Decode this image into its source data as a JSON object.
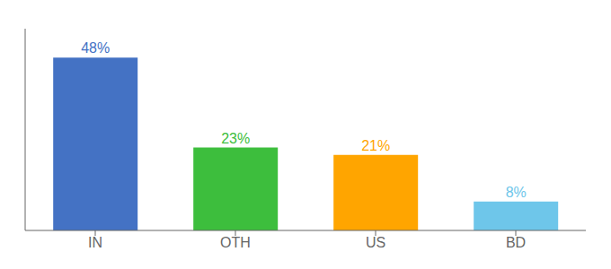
{
  "chart_data": {
    "type": "bar",
    "categories": [
      "IN",
      "OTH",
      "US",
      "BD"
    ],
    "values": [
      48,
      23,
      21,
      8
    ],
    "value_labels": [
      "48%",
      "23%",
      "21%",
      "8%"
    ],
    "colors": [
      "#4472C4",
      "#3DBE3D",
      "#FFA500",
      "#6EC6EA"
    ],
    "ylim": [
      0,
      56
    ],
    "data_labels": true,
    "tick_labels": "x",
    "grid": false
  }
}
